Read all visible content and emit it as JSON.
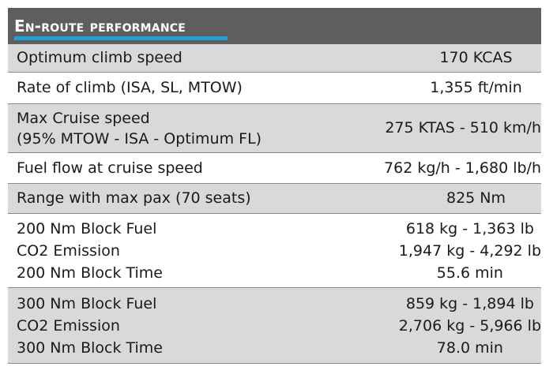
{
  "section": {
    "title": "En-route performance",
    "accent_color": "#1e9fd8",
    "header_bg": "#5e5e5e"
  },
  "rows": [
    {
      "shade": "grey",
      "label": [
        "Optimum climb speed"
      ],
      "value": [
        "170 KCAS"
      ]
    },
    {
      "shade": "white",
      "label": [
        "Rate of climb (ISA, SL, MTOW)"
      ],
      "value": [
        "1,355 ft/min"
      ]
    },
    {
      "shade": "grey",
      "label": [
        "Max Cruise speed",
        "(95% MTOW - ISA - Optimum FL)"
      ],
      "value": [
        "275 KTAS - 510 km/h"
      ]
    },
    {
      "shade": "white",
      "label": [
        "Fuel flow at cruise speed"
      ],
      "value": [
        "762 kg/h - 1,680 lb/h"
      ]
    },
    {
      "shade": "grey",
      "label": [
        "Range with max pax (70 seats)"
      ],
      "value": [
        "825 Nm"
      ]
    },
    {
      "shade": "white",
      "label": [
        "200 Nm Block Fuel",
        "CO2 Emission",
        "200 Nm Block Time"
      ],
      "value": [
        "618 kg - 1,363 lb",
        "1,947 kg - 4,292 lb",
        "55.6 min"
      ]
    },
    {
      "shade": "grey",
      "label": [
        "300 Nm Block Fuel",
        "CO2 Emission",
        "300 Nm Block Time"
      ],
      "value": [
        "859 kg - 1,894 lb",
        "2,706 kg - 5,966 lb",
        "78.0 min"
      ]
    }
  ]
}
